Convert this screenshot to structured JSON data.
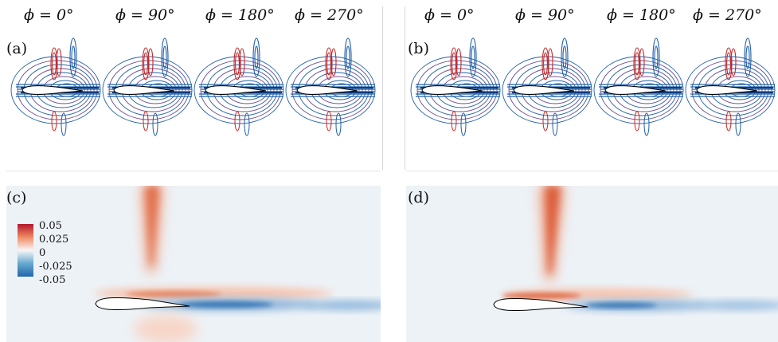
{
  "phase_labels": [
    "ϕ = 0°",
    "ϕ = 90°",
    "ϕ = 180°",
    "ϕ = 270°"
  ],
  "panels": {
    "a": "(a)",
    "b": "(b)",
    "c": "(c)",
    "d": "(d)"
  },
  "colorbar": {
    "ticks": [
      "0.05",
      "0.025",
      "0",
      "-0.025",
      "-0.05"
    ],
    "colors": {
      "max": "#b2182b",
      "mid_pos": "#ef8a62",
      "zero": "#f7f7f7",
      "mid_neg": "#67a9cf",
      "min": "#2166ac"
    }
  },
  "contour_colors": {
    "positive": "#c62828",
    "negative": "#1f5fa8",
    "mixed": "#6a4c93"
  }
}
